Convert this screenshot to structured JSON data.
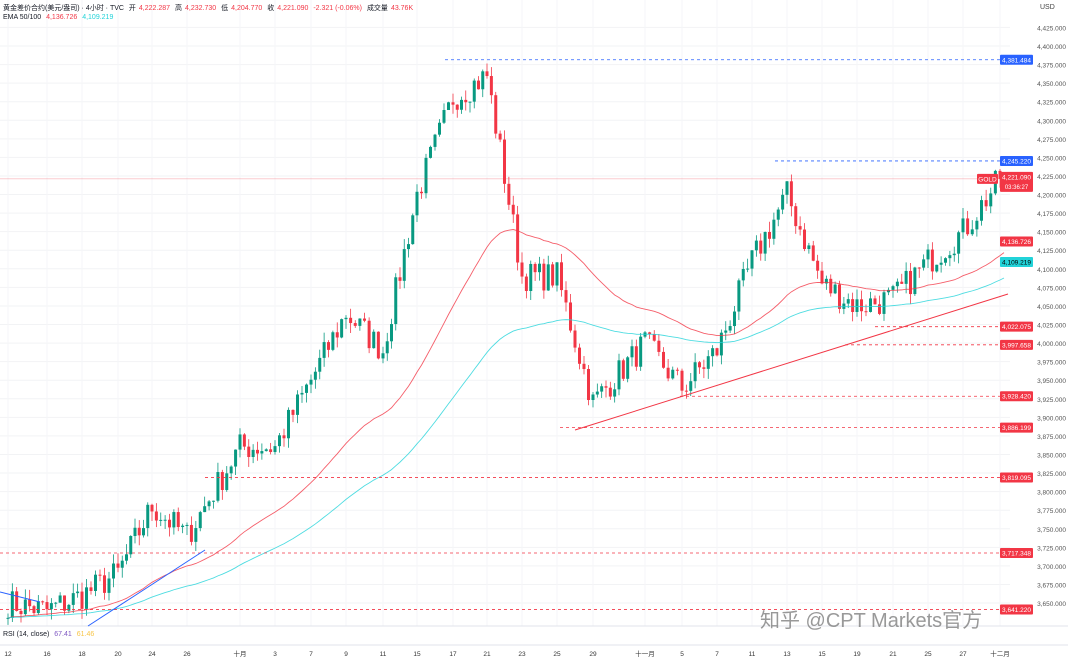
{
  "header": {
    "symbol": "黄金差价合约(美元/盎司) · 4小时 · TVC",
    "open_label": "开",
    "open": "4,222.287",
    "high_label": "高",
    "high": "4,232.730",
    "low_label": "低",
    "low": "4,204.770",
    "close_label": "收",
    "close": "4,221.090",
    "change": "-2.321 (-0.06%)",
    "volume_label": "成交量",
    "volume": "43.76K",
    "ema_label": "EMA 50/100",
    "ema50": "4,136.726",
    "ema100": "4,109.219"
  },
  "rsi": {
    "label": "RSI (14, close)",
    "value": "67.41",
    "ma": "61.46"
  },
  "watermark": "知乎 @CPT Markets官方",
  "currency": "USD",
  "colors": {
    "up": "#089981",
    "down": "#f23645",
    "ema50": "#f23645",
    "ema100": "#22d3d9",
    "support": "#f23645",
    "resistance": "#2962ff",
    "trend_blue": "#2962ff"
  },
  "chart_data": {
    "type": "candlestick",
    "timeframe": "4h",
    "ylim": [
      3625,
      4440
    ],
    "y_ticks": [
      3650,
      3675,
      3700,
      3725,
      3750,
      3775,
      3800,
      3825,
      3850,
      3875,
      3900,
      3925,
      3950,
      3975,
      4000,
      4025,
      4050,
      4075,
      4100,
      4125,
      4150,
      4175,
      4200,
      4225,
      4250,
      4275,
      4300,
      4325,
      4350,
      4375,
      4400,
      4425
    ],
    "x_ticks": [
      "12",
      "16",
      "18",
      "20",
      "24",
      "26",
      "十月",
      "3",
      "7",
      "9",
      "11",
      "15",
      "17",
      "21",
      "23",
      "25",
      "29",
      "十一月",
      "5",
      "7",
      "11",
      "13",
      "15",
      "19",
      "21",
      "25",
      "27",
      "十二月"
    ],
    "approx_closes_at_ticks": [
      3650,
      3640,
      3660,
      3690,
      3780,
      3740,
      3860,
      3860,
      3950,
      4040,
      3990,
      4200,
      4330,
      4360,
      4090,
      4090,
      3920,
      4000,
      3940,
      3990,
      4110,
      4200,
      4080,
      4050,
      4060,
      4110,
      4150,
      4221
    ],
    "last_price": {
      "label": "GOLD",
      "value": "4,221.090",
      "countdown": "03:36:27"
    },
    "ema_values": {
      "ema50": "4,136.726",
      "ema100": "4,109.219"
    },
    "levels": [
      {
        "value": "4,381.484",
        "price": 4381.484,
        "color": "blue"
      },
      {
        "value": "4,245.220",
        "price": 4245.22,
        "color": "blue"
      },
      {
        "value": "4,022.075",
        "price": 4022.075,
        "color": "red"
      },
      {
        "value": "3,997.658",
        "price": 3997.658,
        "color": "red"
      },
      {
        "value": "3,928.420",
        "price": 3928.42,
        "color": "red"
      },
      {
        "value": "3,886.199",
        "price": 3886.199,
        "color": "red"
      },
      {
        "value": "3,819.095",
        "price": 3819.095,
        "color": "red"
      },
      {
        "value": "3,717.348",
        "price": 3717.348,
        "color": "red"
      },
      {
        "value": "3,641.220",
        "price": 3641.22,
        "color": "red"
      }
    ],
    "trendlines": [
      {
        "color": "red",
        "from": [
          "29 (Sep)",
          3886
        ],
        "to": [
          "十二月",
          4065
        ]
      },
      {
        "color": "blue",
        "from": [
          "18",
          3640
        ],
        "to": [
          "26",
          3725
        ]
      }
    ]
  }
}
